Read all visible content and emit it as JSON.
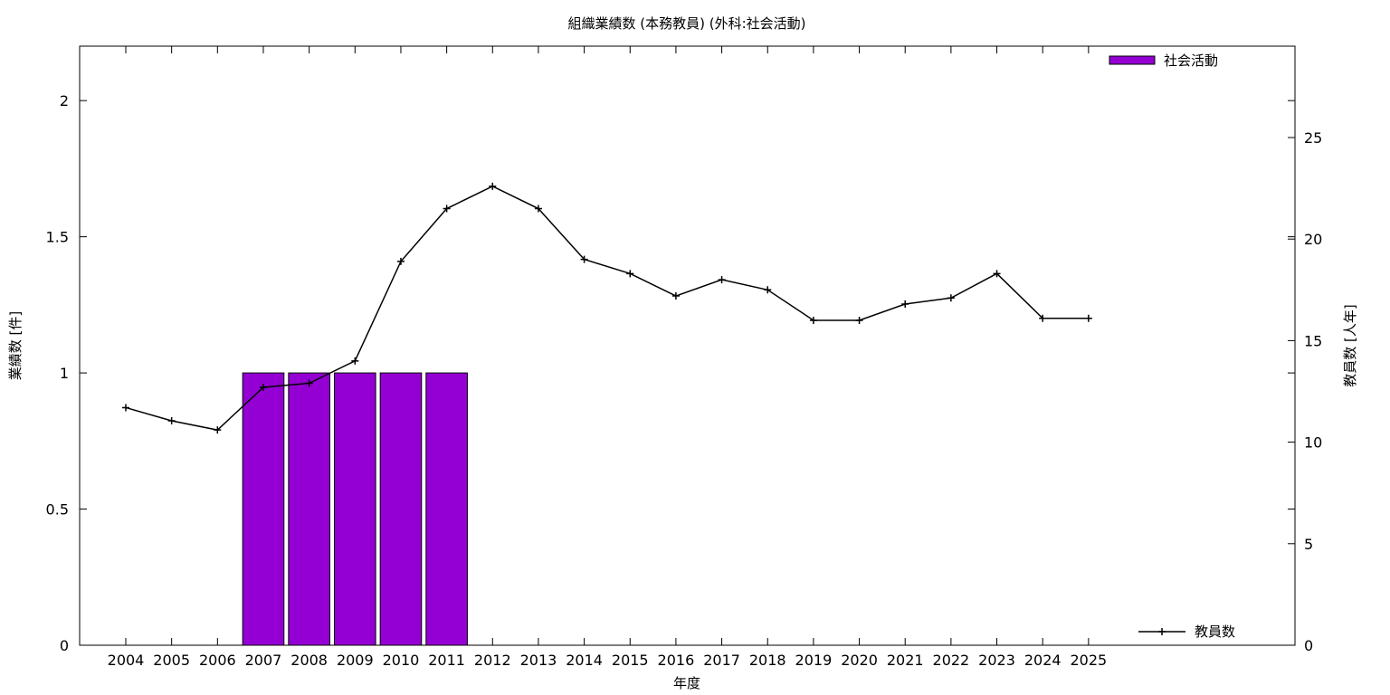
{
  "chart_data": {
    "type": "bar",
    "title": "組織業績数 (本務教員) (外科:社会活動)",
    "xlabel": "年度",
    "ylabel": "業績数 [件]",
    "y2label": "教員数 [人年]",
    "categories": [
      "2004",
      "2005",
      "2006",
      "2007",
      "2008",
      "2009",
      "2010",
      "2011",
      "2012",
      "2013",
      "2014",
      "2015",
      "2016",
      "2017",
      "2018",
      "2019",
      "2020",
      "2021",
      "2022",
      "2023",
      "2024",
      "2025"
    ],
    "ylim": [
      0,
      2.2
    ],
    "y2lim": [
      0,
      29.5
    ],
    "yticks": [
      0,
      0.5,
      1,
      1.5,
      2
    ],
    "y2ticks": [
      0,
      5,
      10,
      15,
      20,
      25
    ],
    "grid": false,
    "series": [
      {
        "name": "社会活動",
        "type": "bar",
        "axis": "left",
        "color": "#9400d3",
        "values": [
          0,
          0,
          0,
          1,
          1,
          1,
          1,
          1,
          0,
          0,
          0,
          0,
          0,
          0,
          0,
          0,
          0,
          0,
          0,
          0,
          0,
          0
        ]
      },
      {
        "name": "教員数",
        "type": "line",
        "axis": "right",
        "color": "#000000",
        "values": [
          11.7,
          11.05,
          10.6,
          12.7,
          12.9,
          14.0,
          18.9,
          21.5,
          22.6,
          21.5,
          19.0,
          18.3,
          17.2,
          18.0,
          17.5,
          16.0,
          16.0,
          16.8,
          17.1,
          18.3,
          16.1,
          16.1
        ]
      }
    ],
    "legend_top": "top-right",
    "legend_bottom": "bottom-right"
  }
}
